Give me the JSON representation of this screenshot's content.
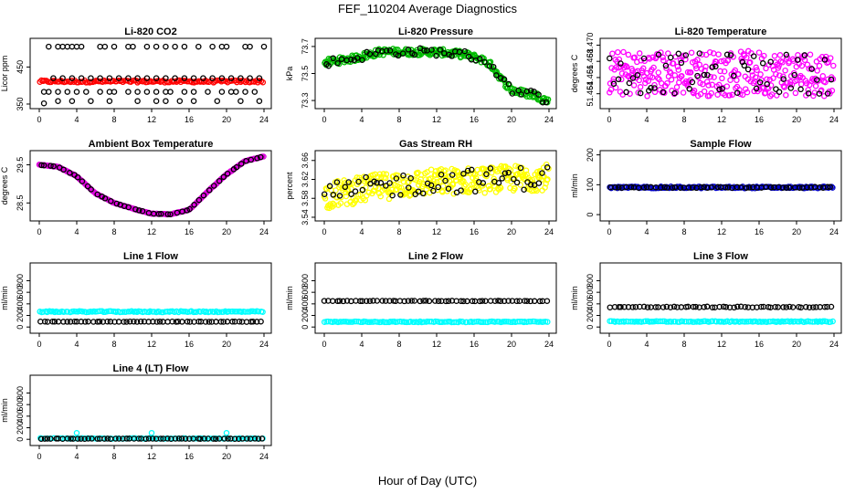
{
  "figure": {
    "title": "FEF_110204  Average Diagnostics",
    "xlabel": "Hour of Day (UTC)"
  },
  "chart_data": [
    {
      "type": "scatter",
      "title": "Li-820 CO2",
      "ylabel": "Licor ppm",
      "xlim": [
        0,
        24
      ],
      "ylim": [
        345,
        520
      ],
      "yticks": [
        {
          "v": 350,
          "label": "350"
        },
        {
          "v": 450,
          "label": "450"
        }
      ],
      "xticks": [
        0,
        4,
        8,
        12,
        16,
        20,
        24
      ],
      "series": [
        {
          "name": "average",
          "color": "#ff0000",
          "pattern": "band",
          "center": 411,
          "spread": 3,
          "count": 140
        },
        {
          "name": "points",
          "color": "#000000",
          "points": [
            [
              0.5,
              352
            ],
            [
              1,
              505
            ],
            [
              2,
              505
            ],
            [
              2.5,
              505
            ],
            [
              3,
              505
            ],
            [
              3.5,
              505
            ],
            [
              4,
              505
            ],
            [
              4.5,
              505
            ],
            [
              6.5,
              505
            ],
            [
              7,
              505
            ],
            [
              8,
              505
            ],
            [
              9.5,
              505
            ],
            [
              10,
              505
            ],
            [
              11.5,
              505
            ],
            [
              12.5,
              505
            ],
            [
              13.5,
              505
            ],
            [
              14.5,
              505
            ],
            [
              15.5,
              505
            ],
            [
              17,
              505
            ],
            [
              18.5,
              505
            ],
            [
              19.5,
              505
            ],
            [
              20,
              505
            ],
            [
              22,
              505
            ],
            [
              22.5,
              505
            ],
            [
              24,
              505
            ],
            [
              1.5,
              420
            ],
            [
              2.5,
              420
            ],
            [
              3.5,
              420
            ],
            [
              4.5,
              420
            ],
            [
              5.5,
              420
            ],
            [
              6.5,
              420
            ],
            [
              7.5,
              420
            ],
            [
              8.5,
              420
            ],
            [
              9.5,
              420
            ],
            [
              10.5,
              420
            ],
            [
              11.5,
              420
            ],
            [
              12.5,
              420
            ],
            [
              13.5,
              420
            ],
            [
              14.5,
              420
            ],
            [
              15.5,
              420
            ],
            [
              16.5,
              420
            ],
            [
              17.5,
              420
            ],
            [
              18.5,
              420
            ],
            [
              19.5,
              420
            ],
            [
              20.5,
              420
            ],
            [
              21.5,
              420
            ],
            [
              22.5,
              420
            ],
            [
              23.5,
              420
            ],
            [
              0.5,
              383
            ],
            [
              1,
              383
            ],
            [
              2,
              383
            ],
            [
              3,
              383
            ],
            [
              4,
              383
            ],
            [
              5,
              383
            ],
            [
              6.5,
              383
            ],
            [
              7.5,
              383
            ],
            [
              8,
              383
            ],
            [
              9.5,
              383
            ],
            [
              10.5,
              383
            ],
            [
              11.5,
              383
            ],
            [
              12.5,
              383
            ],
            [
              13.5,
              383
            ],
            [
              14,
              383
            ],
            [
              15.5,
              383
            ],
            [
              16.5,
              383
            ],
            [
              18,
              383
            ],
            [
              19.5,
              383
            ],
            [
              20.5,
              383
            ],
            [
              21,
              383
            ],
            [
              22,
              383
            ],
            [
              23,
              383
            ],
            [
              2,
              358
            ],
            [
              3.5,
              358
            ],
            [
              5.5,
              358
            ],
            [
              7.5,
              358
            ],
            [
              10.5,
              358
            ],
            [
              12.5,
              358
            ],
            [
              13.5,
              358
            ],
            [
              15,
              358
            ],
            [
              16.5,
              358
            ],
            [
              19,
              358
            ],
            [
              21.5,
              358
            ],
            [
              23.5,
              358
            ]
          ]
        }
      ]
    },
    {
      "type": "scatter",
      "title": "Li-820 Pressure",
      "ylabel": "kPa",
      "xlim": [
        0,
        24
      ],
      "ylim": [
        73.26,
        73.74
      ],
      "yticks": [
        {
          "v": 73.3,
          "label": "73.3"
        },
        {
          "v": 73.5,
          "label": "73.5"
        },
        {
          "v": 73.7,
          "label": "73.7"
        }
      ],
      "xticks": [
        0,
        4,
        8,
        12,
        16,
        20,
        24
      ],
      "series": [
        {
          "name": "average",
          "color": "#00bb00",
          "pattern": "curve",
          "knots": [
            [
              0,
              73.58
            ],
            [
              3,
              73.61
            ],
            [
              6,
              73.66
            ],
            [
              8,
              73.66
            ],
            [
              12,
              73.66
            ],
            [
              15,
              73.64
            ],
            [
              17,
              73.6
            ],
            [
              18,
              73.55
            ],
            [
              19,
              73.45
            ],
            [
              20,
              73.38
            ],
            [
              21,
              73.36
            ],
            [
              22.5,
              73.34
            ],
            [
              24,
              73.29
            ]
          ],
          "spread": 0.025,
          "count": 260
        },
        {
          "name": "points",
          "color": "#000000",
          "pattern": "curve",
          "knots": [
            [
              0,
              73.58
            ],
            [
              3,
              73.61
            ],
            [
              6,
              73.66
            ],
            [
              8,
              73.66
            ],
            [
              12,
              73.66
            ],
            [
              15,
              73.64
            ],
            [
              17,
              73.6
            ],
            [
              18,
              73.55
            ],
            [
              19,
              73.45
            ],
            [
              20,
              73.38
            ],
            [
              21,
              73.36
            ],
            [
              22.5,
              73.34
            ],
            [
              24,
              73.29
            ]
          ],
          "spread": 0.03,
          "count": 55
        }
      ]
    },
    {
      "type": "scatter",
      "title": "Li-820 Temperature",
      "ylabel": "degrees C",
      "xlim": [
        0,
        24
      ],
      "ylim": [
        51.4625,
        51.4705
      ],
      "yticks": [
        {
          "v": 51.464,
          "label": "51.464"
        },
        {
          "v": 51.466,
          "label": "51.466"
        },
        {
          "v": 51.468,
          "label": "51.468"
        },
        {
          "v": 51.47,
          "label": "51.470"
        }
      ],
      "xticks": [
        0,
        4,
        8,
        12,
        16,
        20,
        24
      ],
      "series": [
        {
          "name": "average",
          "color": "#ff00ff",
          "pattern": "band",
          "center": 51.4665,
          "spread": 0.0028,
          "count": 320
        },
        {
          "name": "points",
          "color": "#000000",
          "pattern": "band",
          "center": 51.4665,
          "spread": 0.0025,
          "count": 60
        }
      ]
    },
    {
      "type": "scatter",
      "title": "Ambient Box Temperature",
      "ylabel": "degrees C",
      "xlim": [
        0,
        24
      ],
      "ylim": [
        28.1,
        29.8
      ],
      "yticks": [
        {
          "v": 28.5,
          "label": "28.5"
        },
        {
          "v": 29.5,
          "label": "29.5"
        }
      ],
      "xticks": [
        0,
        4,
        8,
        12,
        16,
        20,
        24
      ],
      "series": [
        {
          "name": "average",
          "color": "#dd00dd",
          "pattern": "curve",
          "knots": [
            [
              0,
              29.5
            ],
            [
              2,
              29.45
            ],
            [
              4,
              29.2
            ],
            [
              6,
              28.75
            ],
            [
              8,
              28.5
            ],
            [
              10,
              28.35
            ],
            [
              12,
              28.22
            ],
            [
              14,
              28.2
            ],
            [
              16,
              28.32
            ],
            [
              18,
              28.8
            ],
            [
              20,
              29.25
            ],
            [
              22,
              29.6
            ],
            [
              24,
              29.72
            ]
          ],
          "spread": 0.008,
          "count": 240
        },
        {
          "name": "points",
          "color": "#000000",
          "pattern": "curve",
          "knots": [
            [
              0,
              29.5
            ],
            [
              2,
              29.45
            ],
            [
              4,
              29.2
            ],
            [
              6,
              28.75
            ],
            [
              8,
              28.5
            ],
            [
              10,
              28.35
            ],
            [
              12,
              28.22
            ],
            [
              14,
              28.2
            ],
            [
              16,
              28.32
            ],
            [
              18,
              28.8
            ],
            [
              20,
              29.25
            ],
            [
              22,
              29.6
            ],
            [
              24,
              29.72
            ]
          ],
          "spread": 0.004,
          "count": 48
        }
      ]
    },
    {
      "type": "scatter",
      "title": "Gas Stream RH",
      "ylabel": "percent",
      "xlim": [
        0,
        24
      ],
      "ylim": [
        3.538,
        3.675
      ],
      "yticks": [
        {
          "v": 3.54,
          "label": "3.54"
        },
        {
          "v": 3.58,
          "label": "3.58"
        },
        {
          "v": 3.62,
          "label": "3.62"
        },
        {
          "v": 3.66,
          "label": "3.66"
        }
      ],
      "xticks": [
        0,
        4,
        8,
        12,
        16,
        20,
        24
      ],
      "series": [
        {
          "name": "average",
          "color": "#ffff00",
          "pattern": "curve",
          "knots": [
            [
              0,
              3.585
            ],
            [
              6,
              3.605
            ],
            [
              12,
              3.615
            ],
            [
              18,
              3.62
            ],
            [
              24,
              3.625
            ]
          ],
          "spread": 0.028,
          "count": 320
        },
        {
          "name": "points",
          "color": "#000000",
          "pattern": "curve",
          "knots": [
            [
              0,
              3.585
            ],
            [
              6,
              3.605
            ],
            [
              12,
              3.615
            ],
            [
              18,
              3.62
            ],
            [
              24,
              3.625
            ]
          ],
          "spread": 0.025,
          "count": 60
        }
      ]
    },
    {
      "type": "scatter",
      "title": "Sample Flow",
      "ylabel": "ml/min",
      "xlim": [
        0,
        24
      ],
      "ylim": [
        -12,
        205
      ],
      "yticks": [
        {
          "v": 0,
          "label": "0"
        },
        {
          "v": 100,
          "label": "100"
        },
        {
          "v": 200,
          "label": "200"
        }
      ],
      "xticks": [
        0,
        4,
        8,
        12,
        16,
        20,
        24
      ],
      "series": [
        {
          "name": "average",
          "color": "#0000cc",
          "pattern": "band",
          "center": 91,
          "spread": 3,
          "count": 150
        },
        {
          "name": "points",
          "color": "#000000",
          "pattern": "band",
          "center": 91,
          "spread": 1.5,
          "count": 55
        }
      ]
    },
    {
      "type": "scatter",
      "title": "Line 1 Flow",
      "ylabel": "ml/min",
      "xlim": [
        0,
        24
      ],
      "ylim": [
        -60,
        1060
      ],
      "yticks": [
        {
          "v": 0,
          "label": "0"
        },
        {
          "v": 200,
          "label": "200"
        },
        {
          "v": 400,
          "label": "400"
        },
        {
          "v": 600,
          "label": "600"
        },
        {
          "v": 800,
          "label": "800"
        }
      ],
      "xticks": [
        0,
        4,
        8,
        12,
        16,
        20,
        24
      ],
      "series": [
        {
          "name": "cyan",
          "color": "#00ffff",
          "pattern": "band",
          "center": 265,
          "spread": 10,
          "count": 120
        },
        {
          "name": "points",
          "color": "#000000",
          "pattern": "band",
          "center": 92,
          "spread": 3,
          "count": 60
        }
      ]
    },
    {
      "type": "scatter",
      "title": "Line 2 Flow",
      "ylabel": "ml/min",
      "xlim": [
        0,
        24
      ],
      "ylim": [
        -60,
        1060
      ],
      "yticks": [
        {
          "v": 0,
          "label": "0"
        },
        {
          "v": 200,
          "label": "200"
        },
        {
          "v": 400,
          "label": "400"
        },
        {
          "v": 600,
          "label": "600"
        },
        {
          "v": 800,
          "label": "800"
        }
      ],
      "xticks": [
        0,
        4,
        8,
        12,
        16,
        20,
        24
      ],
      "series": [
        {
          "name": "cyan",
          "color": "#00ffff",
          "pattern": "band",
          "center": 90,
          "spread": 8,
          "count": 120
        },
        {
          "name": "points",
          "color": "#000000",
          "pattern": "band",
          "center": 450,
          "spread": 4,
          "count": 60
        }
      ]
    },
    {
      "type": "scatter",
      "title": "Line 3 Flow",
      "ylabel": "ml/min",
      "xlim": [
        0,
        24
      ],
      "ylim": [
        -60,
        1060
      ],
      "yticks": [
        {
          "v": 0,
          "label": "0"
        },
        {
          "v": 200,
          "label": "200"
        },
        {
          "v": 400,
          "label": "400"
        },
        {
          "v": 600,
          "label": "600"
        },
        {
          "v": 800,
          "label": "800"
        }
      ],
      "xticks": [
        0,
        4,
        8,
        12,
        16,
        20,
        24
      ],
      "series": [
        {
          "name": "cyan",
          "color": "#00ffff",
          "pattern": "band",
          "center": 95,
          "spread": 8,
          "count": 120
        },
        {
          "name": "points",
          "color": "#000000",
          "pattern": "band",
          "center": 345,
          "spread": 8,
          "count": 60
        }
      ]
    },
    {
      "type": "scatter",
      "title": "Line 4 (LT) Flow",
      "ylabel": "ml/min",
      "xlim": [
        0,
        24
      ],
      "ylim": [
        -60,
        1060
      ],
      "yticks": [
        {
          "v": 0,
          "label": "0"
        },
        {
          "v": 200,
          "label": "200"
        },
        {
          "v": 400,
          "label": "400"
        },
        {
          "v": 600,
          "label": "600"
        },
        {
          "v": 800,
          "label": "800"
        }
      ],
      "xticks": [
        0,
        4,
        8,
        12,
        16,
        20,
        24
      ],
      "series": [
        {
          "name": "cyan",
          "color": "#00ffff",
          "pattern": "band",
          "center": 15,
          "spread": 6,
          "count": 80,
          "extra": [
            [
              4,
              110
            ],
            [
              12,
              110
            ],
            [
              20,
              110
            ]
          ]
        },
        {
          "name": "points",
          "color": "#000000",
          "pattern": "band",
          "center": 10,
          "spread": 3,
          "count": 60
        }
      ]
    }
  ]
}
